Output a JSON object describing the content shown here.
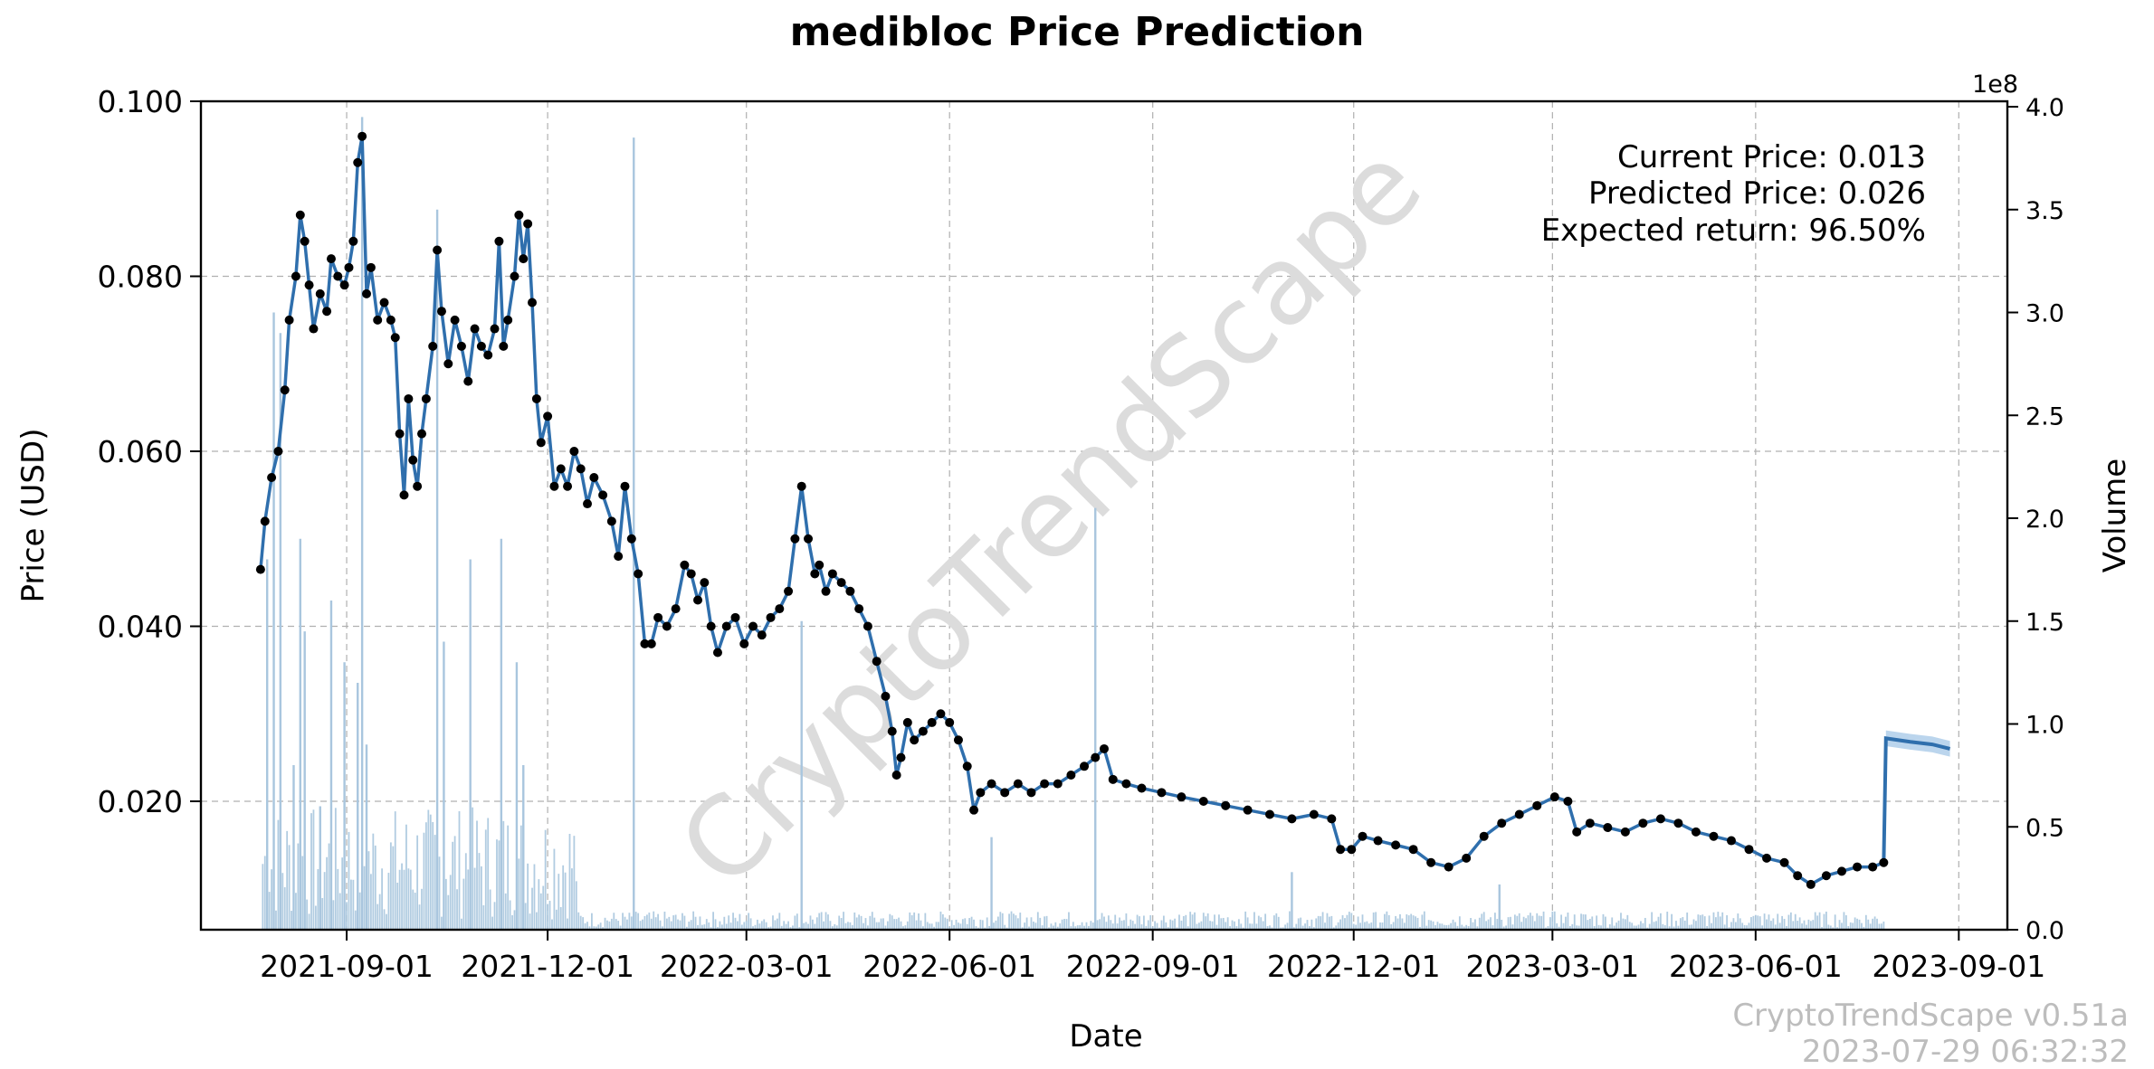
{
  "chart_data": {
    "type": "line",
    "title": "medibloc Price Prediction",
    "xlabel": "Date",
    "ylabel": "Price (USD)",
    "y2label": "Volume",
    "y2_exponent": "1e8",
    "grid": true,
    "ylim": [
      0.0055,
      0.1
    ],
    "y2lim": [
      0,
      4.0
    ],
    "y_ticks": [
      "0.100",
      "0.080",
      "0.060",
      "0.040",
      "0.020"
    ],
    "y_tick_values": [
      0.1,
      0.08,
      0.06,
      0.04,
      0.02
    ],
    "y2_ticks": [
      "4.0",
      "3.5",
      "3.0",
      "2.5",
      "2.0",
      "1.5",
      "1.0",
      "0.5",
      "0.0"
    ],
    "y2_tick_values": [
      4.0,
      3.5,
      3.0,
      2.5,
      2.0,
      1.5,
      1.0,
      0.5,
      0.0
    ],
    "x_range": [
      "2021-06-27",
      "2023-09-23"
    ],
    "x_ticks": [
      "2021-09-01",
      "2021-12-01",
      "2022-03-01",
      "2022-06-01",
      "2022-09-01",
      "2022-12-01",
      "2023-03-01",
      "2023-06-01",
      "2023-09-01"
    ],
    "price_series": {
      "name": "Price",
      "color": "#2f6fad",
      "points": [
        [
          "2021-07-24",
          0.0465
        ],
        [
          "2021-07-26",
          0.052
        ],
        [
          "2021-07-29",
          0.057
        ],
        [
          "2021-08-01",
          0.06
        ],
        [
          "2021-08-04",
          0.067
        ],
        [
          "2021-08-06",
          0.075
        ],
        [
          "2021-08-09",
          0.08
        ],
        [
          "2021-08-11",
          0.087
        ],
        [
          "2021-08-13",
          0.084
        ],
        [
          "2021-08-15",
          0.079
        ],
        [
          "2021-08-17",
          0.074
        ],
        [
          "2021-08-20",
          0.078
        ],
        [
          "2021-08-23",
          0.076
        ],
        [
          "2021-08-25",
          0.082
        ],
        [
          "2021-08-28",
          0.08
        ],
        [
          "2021-08-31",
          0.079
        ],
        [
          "2021-09-02",
          0.081
        ],
        [
          "2021-09-04",
          0.084
        ],
        [
          "2021-09-06",
          0.093
        ],
        [
          "2021-09-08",
          0.096
        ],
        [
          "2021-09-10",
          0.078
        ],
        [
          "2021-09-12",
          0.081
        ],
        [
          "2021-09-15",
          0.075
        ],
        [
          "2021-09-18",
          0.077
        ],
        [
          "2021-09-21",
          0.075
        ],
        [
          "2021-09-23",
          0.073
        ],
        [
          "2021-09-25",
          0.062
        ],
        [
          "2021-09-27",
          0.055
        ],
        [
          "2021-09-29",
          0.066
        ],
        [
          "2021-10-01",
          0.059
        ],
        [
          "2021-10-03",
          0.056
        ],
        [
          "2021-10-05",
          0.062
        ],
        [
          "2021-10-07",
          0.066
        ],
        [
          "2021-10-10",
          0.072
        ],
        [
          "2021-10-12",
          0.083
        ],
        [
          "2021-10-14",
          0.076
        ],
        [
          "2021-10-17",
          0.07
        ],
        [
          "2021-10-20",
          0.075
        ],
        [
          "2021-10-23",
          0.072
        ],
        [
          "2021-10-26",
          0.068
        ],
        [
          "2021-10-29",
          0.074
        ],
        [
          "2021-11-01",
          0.072
        ],
        [
          "2021-11-04",
          0.071
        ],
        [
          "2021-11-07",
          0.074
        ],
        [
          "2021-11-09",
          0.084
        ],
        [
          "2021-11-11",
          0.072
        ],
        [
          "2021-11-13",
          0.075
        ],
        [
          "2021-11-16",
          0.08
        ],
        [
          "2021-11-18",
          0.087
        ],
        [
          "2021-11-20",
          0.082
        ],
        [
          "2021-11-22",
          0.086
        ],
        [
          "2021-11-24",
          0.077
        ],
        [
          "2021-11-26",
          0.066
        ],
        [
          "2021-11-28",
          0.061
        ],
        [
          "2021-12-01",
          0.064
        ],
        [
          "2021-12-04",
          0.056
        ],
        [
          "2021-12-07",
          0.058
        ],
        [
          "2021-12-10",
          0.056
        ],
        [
          "2021-12-13",
          0.06
        ],
        [
          "2021-12-16",
          0.058
        ],
        [
          "2021-12-19",
          0.054
        ],
        [
          "2021-12-22",
          0.057
        ],
        [
          "2021-12-26",
          0.055
        ],
        [
          "2021-12-30",
          0.052
        ],
        [
          "2022-01-02",
          0.048
        ],
        [
          "2022-01-05",
          0.056
        ],
        [
          "2022-01-08",
          0.05
        ],
        [
          "2022-01-11",
          0.046
        ],
        [
          "2022-01-14",
          0.038
        ],
        [
          "2022-01-17",
          0.038
        ],
        [
          "2022-01-20",
          0.041
        ],
        [
          "2022-01-24",
          0.04
        ],
        [
          "2022-01-28",
          0.042
        ],
        [
          "2022-02-01",
          0.047
        ],
        [
          "2022-02-04",
          0.046
        ],
        [
          "2022-02-07",
          0.043
        ],
        [
          "2022-02-10",
          0.045
        ],
        [
          "2022-02-13",
          0.04
        ],
        [
          "2022-02-16",
          0.037
        ],
        [
          "2022-02-20",
          0.04
        ],
        [
          "2022-02-24",
          0.041
        ],
        [
          "2022-02-28",
          0.038
        ],
        [
          "2022-03-04",
          0.04
        ],
        [
          "2022-03-08",
          0.039
        ],
        [
          "2022-03-12",
          0.041
        ],
        [
          "2022-03-16",
          0.042
        ],
        [
          "2022-03-20",
          0.044
        ],
        [
          "2022-03-23",
          0.05
        ],
        [
          "2022-03-26",
          0.056
        ],
        [
          "2022-03-29",
          0.05
        ],
        [
          "2022-04-01",
          0.046
        ],
        [
          "2022-04-03",
          0.047
        ],
        [
          "2022-04-06",
          0.044
        ],
        [
          "2022-04-09",
          0.046
        ],
        [
          "2022-04-13",
          0.045
        ],
        [
          "2022-04-17",
          0.044
        ],
        [
          "2022-04-21",
          0.042
        ],
        [
          "2022-04-25",
          0.04
        ],
        [
          "2022-04-29",
          0.036
        ],
        [
          "2022-05-03",
          0.032
        ],
        [
          "2022-05-06",
          0.028
        ],
        [
          "2022-05-08",
          0.023
        ],
        [
          "2022-05-10",
          0.025
        ],
        [
          "2022-05-13",
          0.029
        ],
        [
          "2022-05-16",
          0.027
        ],
        [
          "2022-05-20",
          0.028
        ],
        [
          "2022-05-24",
          0.029
        ],
        [
          "2022-05-28",
          0.03
        ],
        [
          "2022-06-01",
          0.029
        ],
        [
          "2022-06-05",
          0.027
        ],
        [
          "2022-06-09",
          0.024
        ],
        [
          "2022-06-12",
          0.019
        ],
        [
          "2022-06-15",
          0.021
        ],
        [
          "2022-06-20",
          0.022
        ],
        [
          "2022-06-26",
          0.021
        ],
        [
          "2022-07-02",
          0.022
        ],
        [
          "2022-07-08",
          0.021
        ],
        [
          "2022-07-14",
          0.022
        ],
        [
          "2022-07-20",
          0.022
        ],
        [
          "2022-07-26",
          0.023
        ],
        [
          "2022-08-01",
          0.024
        ],
        [
          "2022-08-06",
          0.025
        ],
        [
          "2022-08-10",
          0.026
        ],
        [
          "2022-08-14",
          0.0225
        ],
        [
          "2022-08-20",
          0.022
        ],
        [
          "2022-08-27",
          0.0215
        ],
        [
          "2022-09-05",
          0.021
        ],
        [
          "2022-09-14",
          0.0205
        ],
        [
          "2022-09-24",
          0.02
        ],
        [
          "2022-10-04",
          0.0195
        ],
        [
          "2022-10-14",
          0.019
        ],
        [
          "2022-10-24",
          0.0185
        ],
        [
          "2022-11-03",
          0.018
        ],
        [
          "2022-11-13",
          0.0185
        ],
        [
          "2022-11-21",
          0.018
        ],
        [
          "2022-11-25",
          0.0145
        ],
        [
          "2022-11-30",
          0.0145
        ],
        [
          "2022-12-05",
          0.016
        ],
        [
          "2022-12-12",
          0.0155
        ],
        [
          "2022-12-20",
          0.015
        ],
        [
          "2022-12-28",
          0.0145
        ],
        [
          "2023-01-05",
          0.013
        ],
        [
          "2023-01-13",
          0.0125
        ],
        [
          "2023-01-21",
          0.0135
        ],
        [
          "2023-01-29",
          0.016
        ],
        [
          "2023-02-06",
          0.0175
        ],
        [
          "2023-02-14",
          0.0185
        ],
        [
          "2023-02-22",
          0.0195
        ],
        [
          "2023-03-02",
          0.0205
        ],
        [
          "2023-03-08",
          0.02
        ],
        [
          "2023-03-12",
          0.0165
        ],
        [
          "2023-03-18",
          0.0175
        ],
        [
          "2023-03-26",
          0.017
        ],
        [
          "2023-04-03",
          0.0165
        ],
        [
          "2023-04-11",
          0.0175
        ],
        [
          "2023-04-19",
          0.018
        ],
        [
          "2023-04-27",
          0.0175
        ],
        [
          "2023-05-05",
          0.0165
        ],
        [
          "2023-05-13",
          0.016
        ],
        [
          "2023-05-21",
          0.0155
        ],
        [
          "2023-05-29",
          0.0145
        ],
        [
          "2023-06-06",
          0.0135
        ],
        [
          "2023-06-14",
          0.013
        ],
        [
          "2023-06-20",
          0.0115
        ],
        [
          "2023-06-26",
          0.0105
        ],
        [
          "2023-07-03",
          0.0115
        ],
        [
          "2023-07-10",
          0.012
        ],
        [
          "2023-07-17",
          0.0125
        ],
        [
          "2023-07-24",
          0.0125
        ],
        [
          "2023-07-29",
          0.013
        ]
      ]
    },
    "prediction_series": {
      "name": "Prediction",
      "color": "#2f6fad",
      "band_color": "#9ec3e6",
      "points": [
        [
          "2023-07-29",
          0.013
        ],
        [
          "2023-07-30",
          0.0272
        ],
        [
          "2023-08-10",
          0.0268
        ],
        [
          "2023-08-20",
          0.0265
        ],
        [
          "2023-08-28",
          0.026
        ]
      ]
    },
    "volume_series": {
      "name": "Volume",
      "color": "#a9c6de",
      "spikes": [
        [
          "2021-07-27",
          1.8
        ],
        [
          "2021-07-30",
          3.0
        ],
        [
          "2021-08-02",
          2.9
        ],
        [
          "2021-08-08",
          0.8
        ],
        [
          "2021-08-11",
          1.9
        ],
        [
          "2021-08-13",
          1.45
        ],
        [
          "2021-08-20",
          0.6
        ],
        [
          "2021-08-25",
          1.6
        ],
        [
          "2021-08-31",
          1.3
        ],
        [
          "2021-09-06",
          1.2
        ],
        [
          "2021-09-08",
          3.95
        ],
        [
          "2021-09-10",
          0.9
        ],
        [
          "2021-10-12",
          3.5
        ],
        [
          "2021-10-15",
          1.4
        ],
        [
          "2021-10-27",
          1.8
        ],
        [
          "2021-11-10",
          1.9
        ],
        [
          "2021-11-17",
          1.3
        ],
        [
          "2021-11-20",
          0.8
        ],
        [
          "2022-01-09",
          3.85
        ],
        [
          "2022-03-26",
          1.5
        ],
        [
          "2022-06-20",
          0.45
        ],
        [
          "2022-08-06",
          2.05
        ],
        [
          "2022-11-03",
          0.28
        ],
        [
          "2023-02-05",
          0.22
        ]
      ],
      "baseline": 0.04
    },
    "annotations": {
      "current_price": "Current Price: 0.013",
      "predicted_price": "Predicted Price: 0.026",
      "expected_return": "Expected return: 96.50%"
    },
    "watermark": "CryptoTrendScape",
    "footer_version": "CryptoTrendScape v0.51a",
    "footer_timestamp": "2023-07-29 06:32:32"
  }
}
